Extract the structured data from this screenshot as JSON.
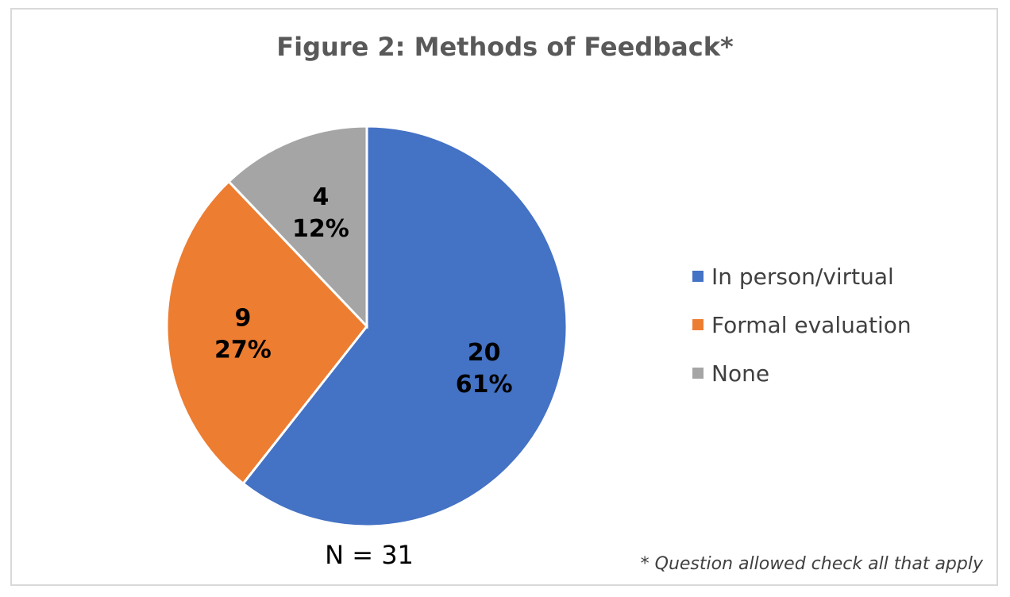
{
  "chart_data": {
    "type": "pie",
    "title": "Figure 2: Methods of Feedback*",
    "slices": [
      {
        "name": "In person/virtual",
        "value": 20,
        "percent_label": "61%",
        "color": "#4472C4"
      },
      {
        "name": "Formal evaluation",
        "value": 9,
        "percent_label": "27%",
        "color": "#ED7D31"
      },
      {
        "name": "None",
        "value": 4,
        "percent_label": "12%",
        "color": "#A5A5A5"
      }
    ],
    "legend_position": "right",
    "n_label": "N = 31",
    "footnote": "* Question allowed check all that apply"
  }
}
